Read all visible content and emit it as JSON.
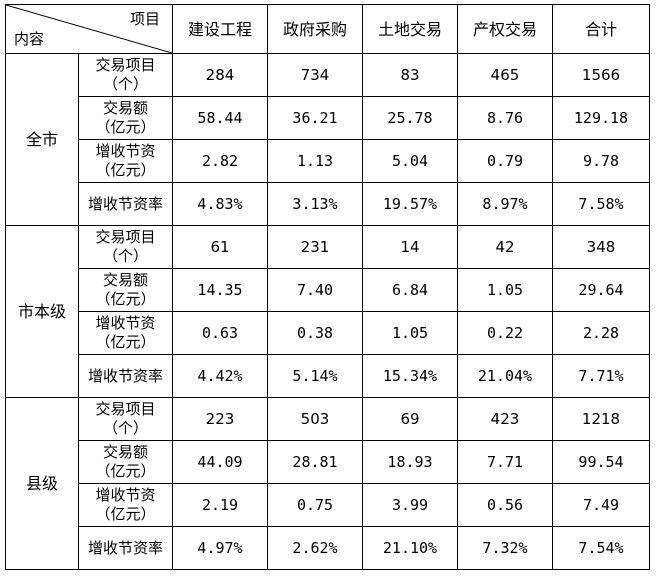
{
  "header": {
    "corner_top": "项目",
    "corner_bottom": "内容",
    "columns": [
      "建设工程",
      "政府采购",
      "土地交易",
      "产权交易",
      "合计"
    ]
  },
  "groups": [
    {
      "name": "全市",
      "rows": [
        {
          "metric": [
            "交易项目",
            "（个）"
          ],
          "values": [
            "284",
            "734",
            "83",
            "465",
            "1566"
          ]
        },
        {
          "metric": [
            "交易额",
            "（亿元）"
          ],
          "values": [
            "58.44",
            "36.21",
            "25.78",
            "8.76",
            "129.18"
          ]
        },
        {
          "metric": [
            "增收节资",
            "（亿元）"
          ],
          "values": [
            "2.82",
            "1.13",
            "5.04",
            "0.79",
            "9.78"
          ]
        },
        {
          "metric": [
            "增收节资率"
          ],
          "values": [
            "4.83%",
            "3.13%",
            "19.57%",
            "8.97%",
            "7.58%"
          ]
        }
      ]
    },
    {
      "name": "市本级",
      "rows": [
        {
          "metric": [
            "交易项目",
            "（个）"
          ],
          "values": [
            "61",
            "231",
            "14",
            "42",
            "348"
          ]
        },
        {
          "metric": [
            "交易额",
            "（亿元）"
          ],
          "values": [
            "14.35",
            "7.40",
            "6.84",
            "1.05",
            "29.64"
          ]
        },
        {
          "metric": [
            "增收节资",
            "（亿元）"
          ],
          "values": [
            "0.63",
            "0.38",
            "1.05",
            "0.22",
            "2.28"
          ]
        },
        {
          "metric": [
            "增收节资率"
          ],
          "values": [
            "4.42%",
            "5.14%",
            "15.34%",
            "21.04%",
            "7.71%"
          ]
        }
      ]
    },
    {
      "name": "县级",
      "rows": [
        {
          "metric": [
            "交易项目",
            "（个）"
          ],
          "values": [
            "223",
            "503",
            "69",
            "423",
            "1218"
          ]
        },
        {
          "metric": [
            "交易额",
            "（亿元）"
          ],
          "values": [
            "44.09",
            "28.81",
            "18.93",
            "7.71",
            "99.54"
          ]
        },
        {
          "metric": [
            "增收节资",
            "（亿元）"
          ],
          "values": [
            "2.19",
            "0.75",
            "3.99",
            "0.56",
            "7.49"
          ]
        },
        {
          "metric": [
            "增收节资率"
          ],
          "values": [
            "4.97%",
            "2.62%",
            "21.10%",
            "7.32%",
            "7.54%"
          ]
        }
      ]
    }
  ]
}
